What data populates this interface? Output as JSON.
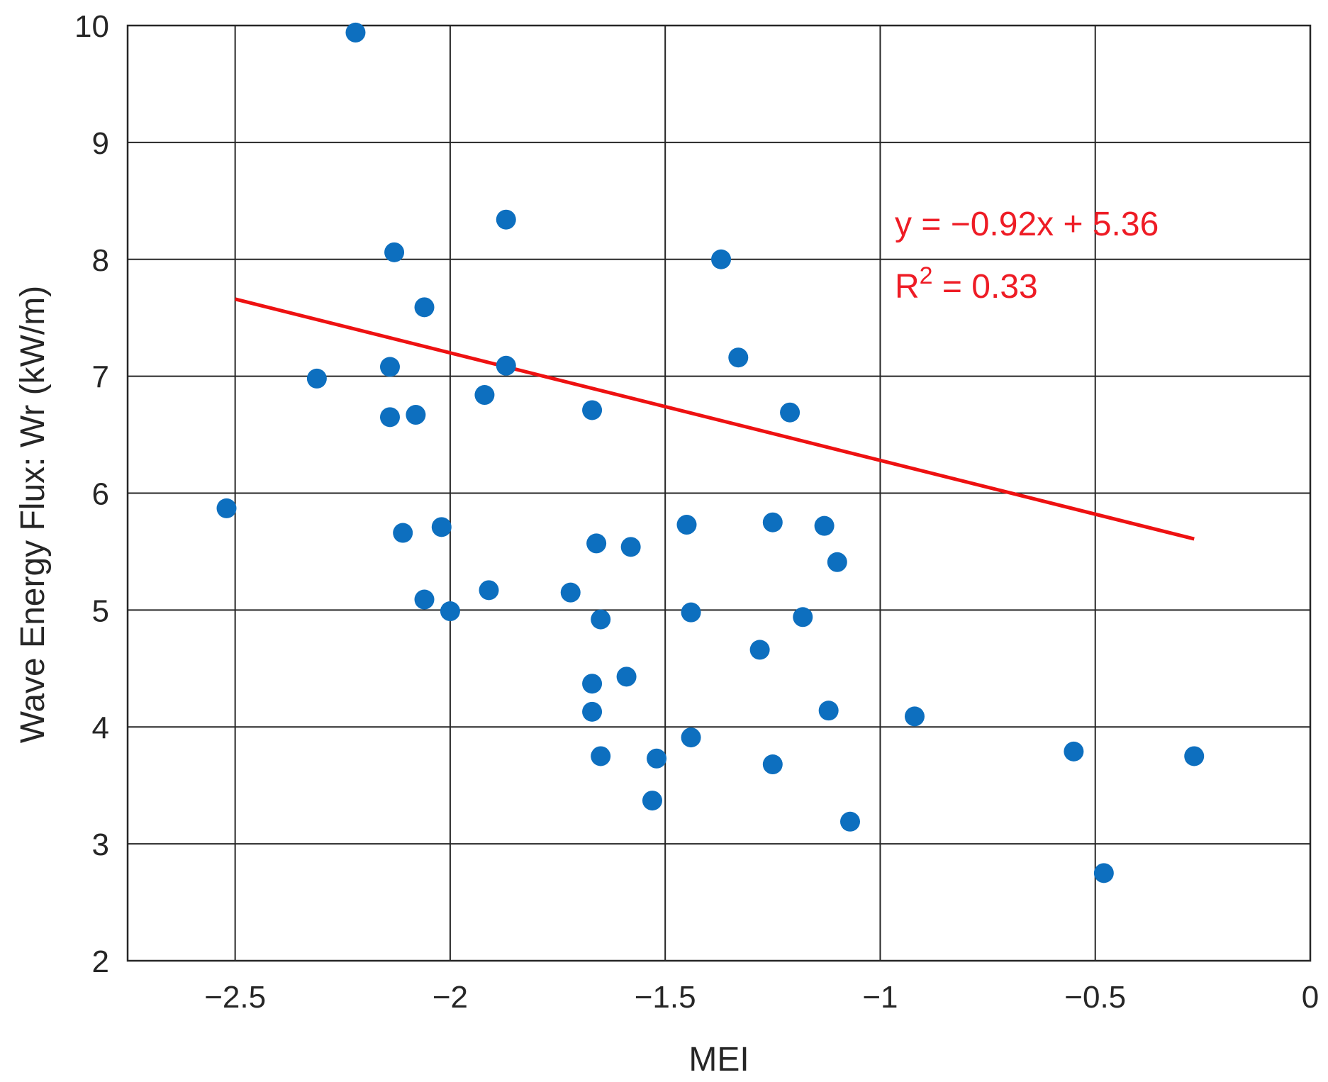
{
  "chart_data": {
    "type": "scatter",
    "xlabel": "MEI",
    "ylabel": "Wave Energy Flux: Wr (kW/m)",
    "xlim": [
      -2.75,
      0
    ],
    "ylim": [
      2,
      10
    ],
    "xticks": [
      -2.5,
      -2,
      -1.5,
      -1,
      -0.5,
      0
    ],
    "xtick_labels": [
      "−2.5",
      "−2",
      "−1.5",
      "−1",
      "−0.5",
      "0"
    ],
    "yticks": [
      2,
      3,
      4,
      5,
      6,
      7,
      8,
      9,
      10
    ],
    "ytick_labels": [
      "2",
      "3",
      "4",
      "5",
      "6",
      "7",
      "8",
      "9",
      "10"
    ],
    "grid": true,
    "colors": {
      "points": "#0d6fbf",
      "fit_line": "#ee1111",
      "annotation": "#ee1c25"
    },
    "points": {
      "x": [
        -2.22,
        -2.52,
        -2.31,
        -2.13,
        -2.14,
        -2.14,
        -2.08,
        -2.06,
        -2.11,
        -2.02,
        -2.06,
        -2.0,
        -1.92,
        -1.91,
        -1.87,
        -1.87,
        -1.72,
        -1.67,
        -1.66,
        -1.65,
        -1.67,
        -1.67,
        -1.65,
        -1.58,
        -1.59,
        -1.52,
        -1.53,
        -1.45,
        -1.44,
        -1.44,
        -1.37,
        -1.33,
        -1.28,
        -1.25,
        -1.25,
        -1.21,
        -1.18,
        -1.13,
        -1.12,
        -1.1,
        -1.07,
        -0.92,
        -0.55,
        -0.48,
        -0.27
      ],
      "y": [
        9.94,
        5.87,
        6.98,
        8.06,
        7.08,
        6.65,
        6.67,
        7.59,
        5.66,
        5.71,
        5.09,
        4.99,
        6.84,
        5.17,
        8.34,
        7.09,
        5.15,
        6.71,
        5.57,
        4.92,
        4.37,
        4.13,
        3.75,
        5.54,
        4.43,
        3.73,
        3.37,
        5.73,
        4.98,
        3.91,
        8.0,
        7.16,
        4.66,
        5.75,
        3.68,
        6.69,
        4.94,
        5.72,
        4.14,
        5.41,
        3.19,
        4.09,
        3.79,
        2.75,
        3.75
      ]
    },
    "fit": {
      "slope": -0.92,
      "intercept": 5.36,
      "x_range": [
        -2.5,
        -0.27
      ]
    },
    "annotations": {
      "equation": "y = −0.92x + 5.36",
      "r2_prefix": "R",
      "r2_exp": "2",
      "r2_suffix": " = 0.33"
    }
  }
}
